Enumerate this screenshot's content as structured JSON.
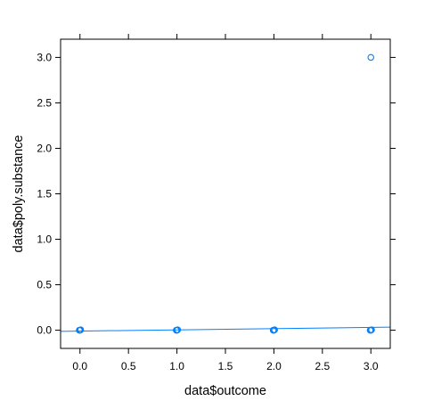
{
  "chart_data": {
    "type": "scatter",
    "title": "",
    "xlabel": "data$outcome",
    "ylabel": "data$poly.substance",
    "xlim": [
      -0.2,
      3.2
    ],
    "ylim": [
      -0.2,
      3.2
    ],
    "xticks": [
      0.0,
      0.5,
      1.0,
      1.5,
      2.0,
      2.5,
      3.0
    ],
    "xtick_labels": [
      "0.0",
      "0.5",
      "1.0",
      "1.5",
      "2.0",
      "2.5",
      "3.0"
    ],
    "yticks": [
      0.0,
      0.5,
      1.0,
      1.5,
      2.0,
      2.5,
      3.0
    ],
    "ytick_labels": [
      "0.0",
      "0.5",
      "1.0",
      "1.5",
      "2.0",
      "2.5",
      "3.0"
    ],
    "grid": false,
    "series": [
      {
        "points": [
          {
            "x": 0,
            "y": 0
          },
          {
            "x": 0,
            "y": 0
          },
          {
            "x": 0,
            "y": 0
          },
          {
            "x": 1,
            "y": 0
          },
          {
            "x": 1,
            "y": 0
          },
          {
            "x": 1,
            "y": 0
          },
          {
            "x": 2,
            "y": 0
          },
          {
            "x": 2,
            "y": 0
          },
          {
            "x": 2,
            "y": 0
          },
          {
            "x": 3,
            "y": 0
          },
          {
            "x": 3,
            "y": 0
          },
          {
            "x": 3,
            "y": 0
          },
          {
            "x": 3,
            "y": 3.0
          }
        ],
        "color": "#0080ff",
        "marker": "open-circle"
      }
    ],
    "regression_line": {
      "x": [
        -0.2,
        3.2
      ],
      "y": [
        -0.012,
        0.034
      ],
      "color": "#0080ff"
    }
  }
}
